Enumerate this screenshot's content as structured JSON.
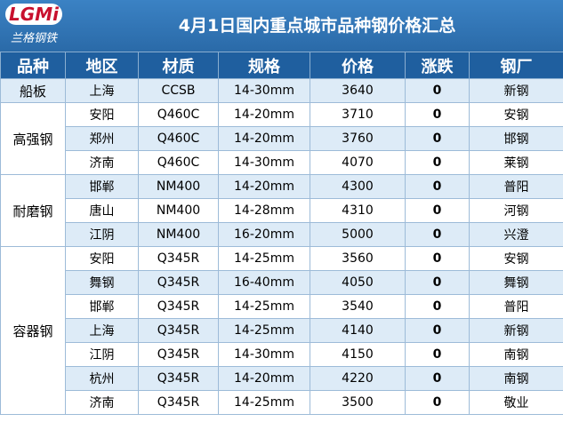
{
  "logo": {
    "mark": "LGMi",
    "name": "兰格钢铁"
  },
  "title": "4月1日国内重点城市品种钢价格汇总",
  "table": {
    "header": [
      "品种",
      "地区",
      "材质",
      "规格",
      "价格",
      "涨跌",
      "钢厂"
    ],
    "groups": [
      {
        "name": "船板",
        "rows": [
          [
            "上海",
            "CCSB",
            "14-30mm",
            3640,
            0,
            "新钢"
          ]
        ]
      },
      {
        "name": "高强钢",
        "rows": [
          [
            "安阳",
            "Q460C",
            "14-20mm",
            3710,
            0,
            "安钢"
          ],
          [
            "郑州",
            "Q460C",
            "14-20mm",
            3760,
            0,
            "邯钢"
          ],
          [
            "济南",
            "Q460C",
            "14-30mm",
            4070,
            0,
            "莱钢"
          ]
        ]
      },
      {
        "name": "耐磨钢",
        "rows": [
          [
            "邯郸",
            "NM400",
            "14-20mm",
            4300,
            0,
            "普阳"
          ],
          [
            "唐山",
            "NM400",
            "14-28mm",
            4310,
            0,
            "河钢"
          ],
          [
            "江阴",
            "NM400",
            "16-20mm",
            5000,
            0,
            "兴澄"
          ]
        ]
      },
      {
        "name": "容器钢",
        "rows": [
          [
            "安阳",
            "Q345R",
            "14-25mm",
            3560,
            0,
            "安钢"
          ],
          [
            "舞钢",
            "Q345R",
            "16-40mm",
            4050,
            0,
            "舞钢"
          ],
          [
            "邯郸",
            "Q345R",
            "14-25mm",
            3540,
            0,
            "普阳"
          ],
          [
            "上海",
            "Q345R",
            "14-25mm",
            4140,
            0,
            "新钢"
          ],
          [
            "江阴",
            "Q345R",
            "14-30mm",
            4150,
            0,
            "南钢"
          ],
          [
            "杭州",
            "Q345R",
            "14-20mm",
            4220,
            0,
            "南钢"
          ],
          [
            "济南",
            "Q345R",
            "14-25mm",
            3500,
            0,
            "敬业"
          ]
        ]
      }
    ]
  }
}
